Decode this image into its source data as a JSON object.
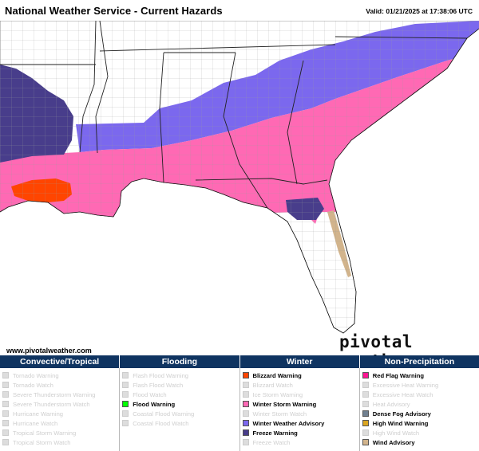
{
  "header": {
    "title": "National Weather Service - Current Hazards",
    "valid": "Valid: 01/21/2025 at 17:38:06 UTC"
  },
  "footer": {
    "url": "www.pivotalweather.com",
    "brand": "pivotal weather"
  },
  "colors": {
    "blizzard_warning": "#ff4500",
    "winter_storm_warning": "#ff69b4",
    "winter_weather_advisory": "#7b68ee",
    "freeze_warning": "#483d8b",
    "red_flag_warning": "#ff1493",
    "dense_fog_advisory": "#708090",
    "high_wind_warning": "#daa520",
    "wind_advisory": "#d2b48c",
    "flood_warning": "#00ff00",
    "legend_header_bg": "#0f3461"
  },
  "legend": {
    "headers": [
      "Convective/Tropical",
      "Flooding",
      "Winter",
      "Non-Precipitation"
    ],
    "columns": [
      [
        {
          "label": "Tornado Warning",
          "color": "#ff0000",
          "active": false
        },
        {
          "label": "Tornado Watch",
          "color": "#ffff00",
          "active": false
        },
        {
          "label": "Severe Thunderstorm Warning",
          "color": "#ffa500",
          "active": false
        },
        {
          "label": "Severe Thunderstorm Watch",
          "color": "#db7093",
          "active": false
        },
        {
          "label": "Hurricane Warning",
          "color": "#dc143c",
          "active": false
        },
        {
          "label": "Hurricane Watch",
          "color": "#ff00ff",
          "active": false
        },
        {
          "label": "Tropical Storm Warning",
          "color": "#b22222",
          "active": false
        },
        {
          "label": "Tropical Storm Watch",
          "color": "#f08080",
          "active": false
        }
      ],
      [
        {
          "label": "Flash Flood Warning",
          "color": "#8b0000",
          "active": false
        },
        {
          "label": "Flash Flood Watch",
          "color": "#2e8b57",
          "active": false
        },
        {
          "label": "Flood Watch",
          "color": "#2e8b57",
          "active": false
        },
        {
          "label": "Flood Warning",
          "color": "#00ff00",
          "active": true
        },
        {
          "label": "Coastal Flood Warning",
          "color": "#228b22",
          "active": false
        },
        {
          "label": "Coastal Flood Watch",
          "color": "#66cdaa",
          "active": false
        }
      ],
      [
        {
          "label": "Blizzard Warning",
          "color": "#ff4500",
          "active": true
        },
        {
          "label": "Blizzard Watch",
          "color": "#adff2f",
          "active": false
        },
        {
          "label": "Ice Storm Warning",
          "color": "#8b008b",
          "active": false
        },
        {
          "label": "Winter Storm Warning",
          "color": "#ff69b4",
          "active": true
        },
        {
          "label": "Winter Storm Watch",
          "color": "#4682b4",
          "active": false
        },
        {
          "label": "Winter Weather Advisory",
          "color": "#7b68ee",
          "active": true
        },
        {
          "label": "Freeze Warning",
          "color": "#483d8b",
          "active": true
        },
        {
          "label": "Freeze Watch",
          "color": "#00ffff",
          "active": false
        }
      ],
      [
        {
          "label": "Red Flag Warning",
          "color": "#ff1493",
          "active": true
        },
        {
          "label": "Excessive Heat Warning",
          "color": "#c71585",
          "active": false
        },
        {
          "label": "Excessive Heat Watch",
          "color": "#800000",
          "active": false
        },
        {
          "label": "Heat Advisory",
          "color": "#ff7f50",
          "active": false
        },
        {
          "label": "Dense Fog Advisory",
          "color": "#708090",
          "active": true
        },
        {
          "label": "High Wind Warning",
          "color": "#daa520",
          "active": true
        },
        {
          "label": "High Wind Watch",
          "color": "#b8860b",
          "active": false
        },
        {
          "label": "Wind Advisory",
          "color": "#d2b48c",
          "active": true
        }
      ]
    ]
  }
}
